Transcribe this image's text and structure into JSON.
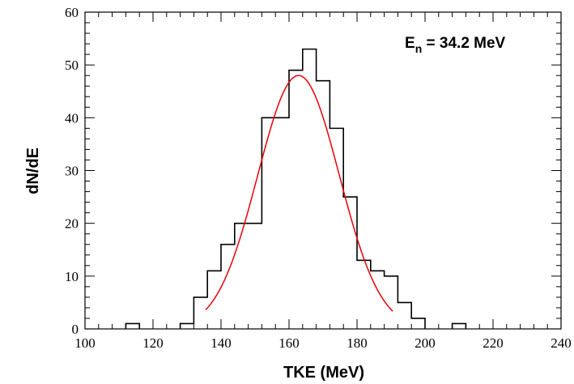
{
  "chart_data": {
    "type": "histogram",
    "annotation": {
      "main": "E",
      "sub": "n",
      "rest": " = 34.2 MeV"
    },
    "xlabel": "TKE (MeV)",
    "ylabel": "dN/dE",
    "xlim": [
      100,
      240
    ],
    "ylim": [
      0,
      60
    ],
    "x_ticks": [
      100,
      120,
      140,
      160,
      180,
      200,
      220,
      240
    ],
    "y_ticks": [
      0,
      10,
      20,
      30,
      40,
      50,
      60
    ],
    "x_minor_step": 4,
    "y_minor_step": 2,
    "grid": false,
    "histogram": {
      "bin_edges": [
        100,
        104,
        108,
        112,
        116,
        120,
        124,
        128,
        132,
        136,
        140,
        144,
        148,
        152,
        156,
        160,
        164,
        168,
        172,
        176,
        180,
        184,
        188,
        192,
        196,
        200,
        204,
        208,
        212,
        216,
        220,
        224,
        228,
        232,
        236,
        240
      ],
      "counts": [
        0,
        0,
        0,
        1,
        0,
        0,
        0,
        1,
        6,
        11,
        16,
        20,
        20,
        40,
        40,
        49,
        53,
        47,
        38,
        25,
        13,
        11,
        10,
        5,
        2,
        0,
        0,
        1,
        0,
        0,
        0,
        0,
        0,
        0,
        0
      ],
      "color": "#000000"
    },
    "fit": {
      "type": "gaussian",
      "amplitude": 48,
      "mean": 162.8,
      "sigma": 12.0,
      "x_range": [
        135.5,
        190.5
      ],
      "color": "#e8000b"
    }
  }
}
